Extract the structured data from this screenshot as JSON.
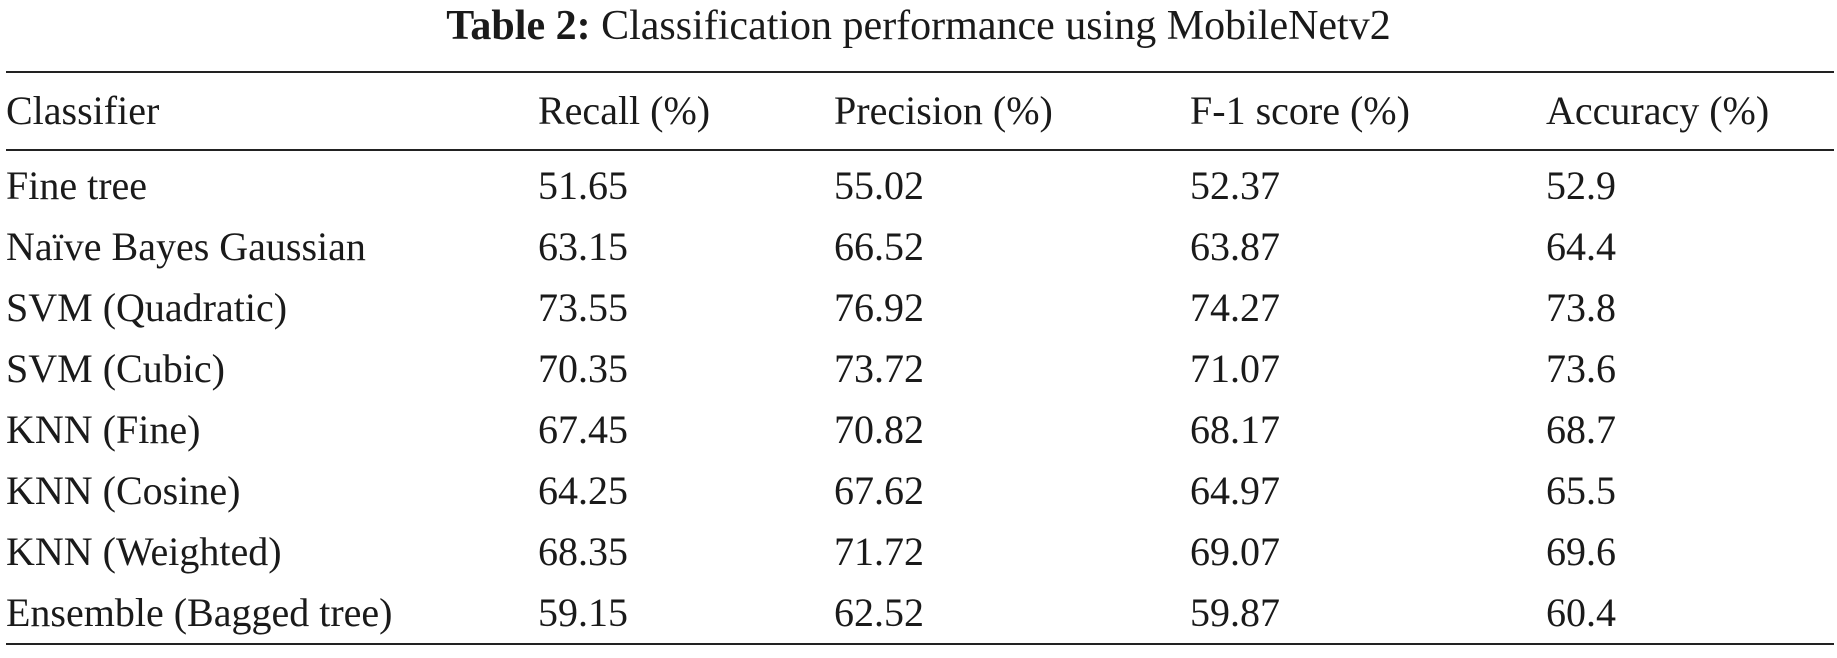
{
  "caption": {
    "label": "Table 2:",
    "text": "Classification performance using MobileNetv2"
  },
  "table": {
    "headers": [
      "Classifier",
      "Recall (%)",
      "Precision (%)",
      "F-1 score (%)",
      "Accuracy (%)"
    ],
    "rows": [
      [
        "Fine tree",
        "51.65",
        "55.02",
        "52.37",
        "52.9"
      ],
      [
        "Naïve Bayes Gaussian",
        "63.15",
        "66.52",
        "63.87",
        "64.4"
      ],
      [
        "SVM (Quadratic)",
        "73.55",
        "76.92",
        "74.27",
        "73.8"
      ],
      [
        "SVM (Cubic)",
        "70.35",
        "73.72",
        "71.07",
        "73.6"
      ],
      [
        "KNN (Fine)",
        "67.45",
        "70.82",
        "68.17",
        "68.7"
      ],
      [
        "KNN (Cosine)",
        "64.25",
        "67.62",
        "64.97",
        "65.5"
      ],
      [
        "KNN (Weighted)",
        "68.35",
        "71.72",
        "69.07",
        "69.6"
      ],
      [
        "Ensemble (Bagged tree)",
        "59.15",
        "62.52",
        "59.87",
        "60.4"
      ]
    ]
  }
}
